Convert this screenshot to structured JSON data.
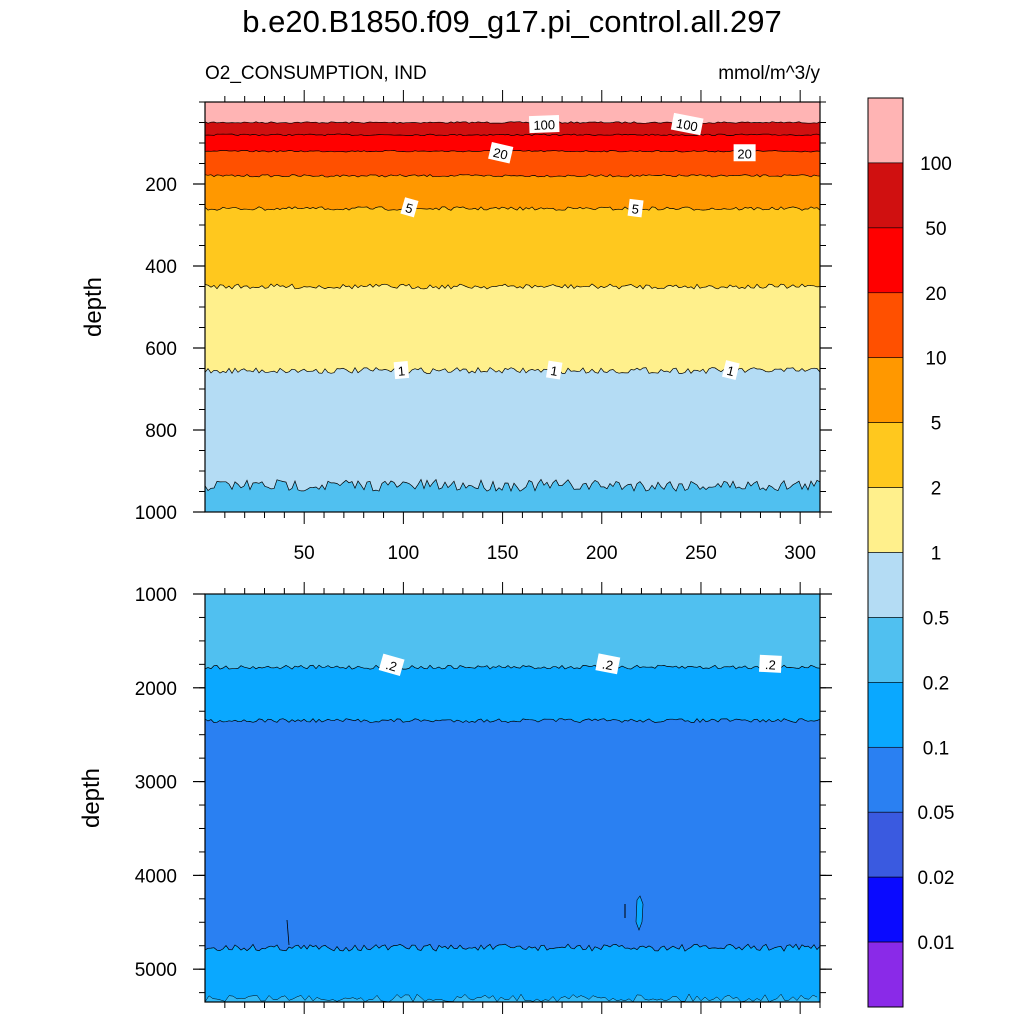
{
  "title": "b.e20.B1850.f09_g17.pi_control.all.297",
  "left_string": "O2_CONSUMPTION, IND",
  "right_string": "mmol/m^3/y",
  "chart_data": [
    {
      "type": "contour",
      "panel": "upper",
      "ylabel": "depth",
      "xlim": [
        0,
        310
      ],
      "ylim": [
        1000,
        0
      ],
      "y_reversed": true,
      "x_ticks": [
        50,
        100,
        150,
        200,
        250,
        300
      ],
      "y_ticks": [
        200,
        400,
        600,
        800,
        1000
      ],
      "contour_line_depths": [
        {
          "level": 100,
          "depth": 50
        },
        {
          "level": 50,
          "depth": 80
        },
        {
          "level": 20,
          "depth": 120
        },
        {
          "level": 10,
          "depth": 180
        },
        {
          "level": 5,
          "depth": 260
        },
        {
          "level": 2,
          "depth": 450
        },
        {
          "level": 1,
          "depth": 655
        },
        {
          "level": 0.5,
          "depth": 935
        }
      ],
      "contour_labels": [
        {
          "text": "100",
          "x": 171,
          "depth": 55
        },
        {
          "text": "100",
          "x": 243,
          "depth": 55
        },
        {
          "text": "20",
          "x": 149,
          "depth": 125
        },
        {
          "text": "20",
          "x": 272,
          "depth": 125
        },
        {
          "text": "5",
          "x": 103,
          "depth": 258
        },
        {
          "text": "5",
          "x": 217,
          "depth": 260
        },
        {
          "text": "1",
          "x": 99,
          "depth": 655
        },
        {
          "text": "1",
          "x": 176,
          "depth": 655
        },
        {
          "text": "1",
          "x": 265,
          "depth": 655
        }
      ]
    },
    {
      "type": "contour",
      "panel": "lower",
      "ylabel": "depth",
      "xlim": [
        0,
        310
      ],
      "ylim": [
        5350,
        1000
      ],
      "y_reversed": true,
      "y_ticks": [
        1000,
        2000,
        3000,
        4000,
        5000
      ],
      "contour_line_depths": [
        {
          "level": 0.2,
          "depth": 1780
        },
        {
          "level": 0.1,
          "depth": 2350
        },
        {
          "level": 0.1,
          "depth": 4770
        }
      ],
      "contour_labels": [
        {
          "text": ".2",
          "x": 94,
          "depth": 1760
        },
        {
          "text": ".2",
          "x": 203,
          "depth": 1750
        },
        {
          "text": ".2",
          "x": 285,
          "depth": 1750
        }
      ]
    }
  ],
  "colorbar": {
    "labels": [
      "100",
      "50",
      "20",
      "10",
      "5",
      "2",
      "1",
      "0.5",
      "0.2",
      "0.1",
      "0.05",
      "0.02",
      "0.01"
    ],
    "colors": [
      "#ffb4b4",
      "#d01010",
      "#ff0000",
      "#ff5000",
      "#ff9800",
      "#ffc81e",
      "#fff08c",
      "#b4dcf4",
      "#50c0f0",
      "#0aa8ff",
      "#2a80f2",
      "#3a5ae0",
      "#0a0aff",
      "#8a2ae8"
    ]
  }
}
